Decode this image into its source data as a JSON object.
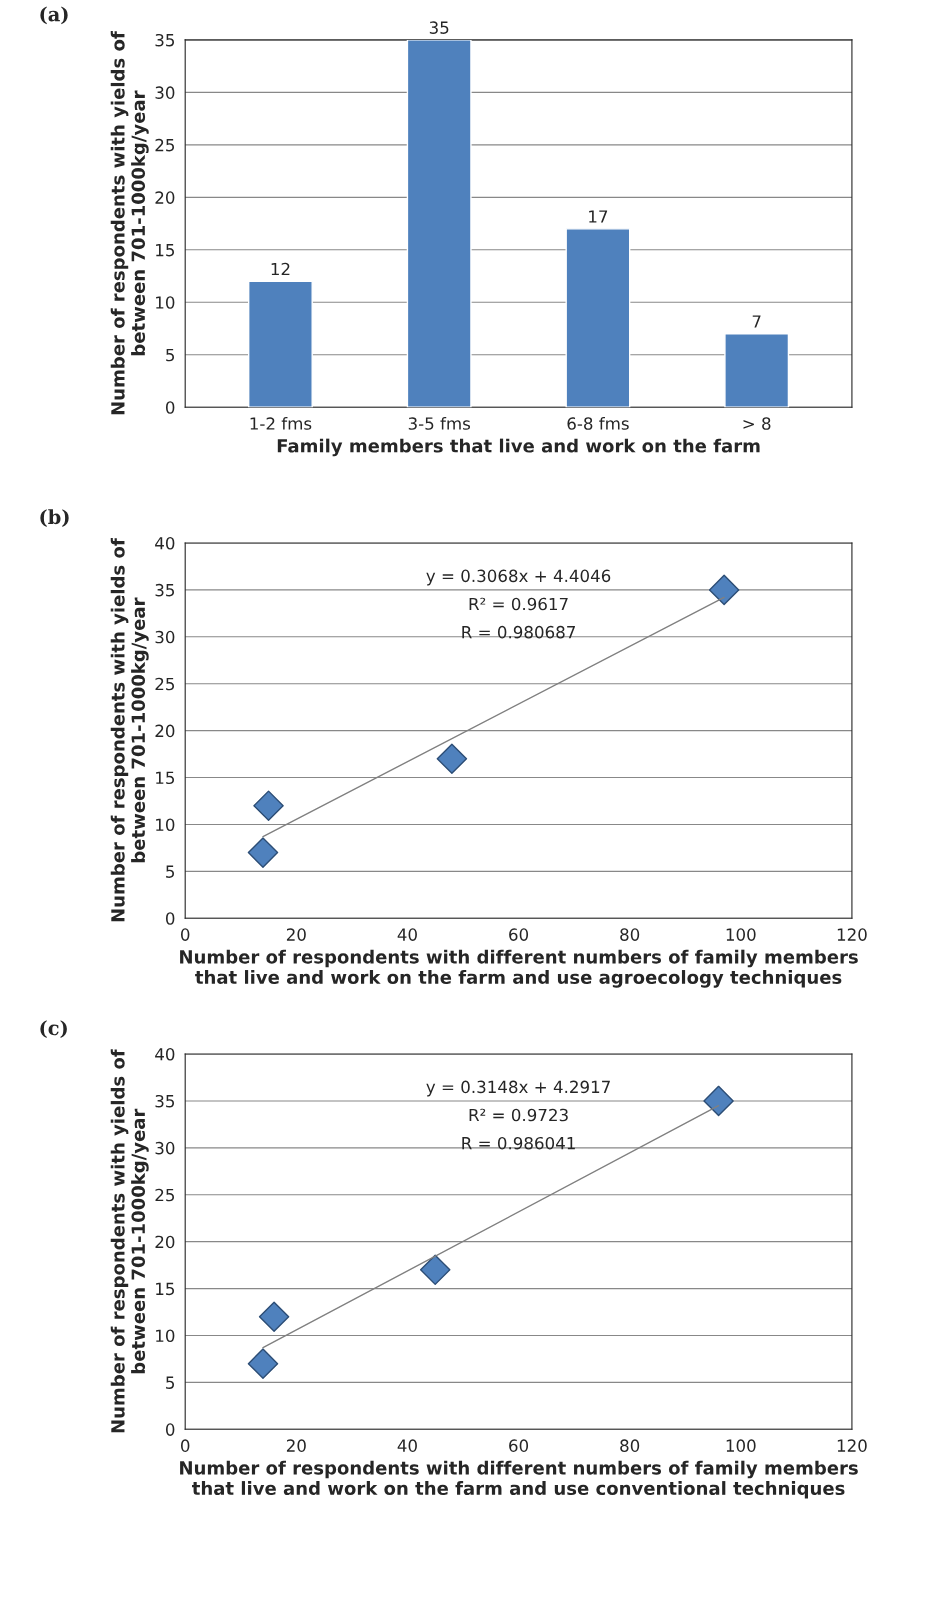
{
  "chart_data": [
    {
      "type": "bar",
      "title": "(a)",
      "xlabel": "Family members that live and work on the farm",
      "ylabel": "Number of respondents with yields of\nbetween 701-1000kg/year",
      "categories": [
        "1-2 fms",
        "3-5 fms",
        "6-8 fms",
        "> 8"
      ],
      "values": [
        12,
        35,
        17,
        7
      ],
      "color": "#4f81bd",
      "data_labels": true,
      "ylim": [
        0,
        35
      ],
      "yticks": [
        0,
        5,
        10,
        15,
        20,
        25,
        30,
        35
      ],
      "grid": "y"
    },
    {
      "type": "scatter",
      "title": "(b)",
      "xlabel": "Number of respondents with different numbers of family members\nthat live and work on the farm and use agroecology techniques",
      "ylabel": "Number of respondents with yields of\nbetween 701-1000kg/year",
      "annotations": [
        "y = 0.3068x + 4.4046",
        "R² = 0.9617",
        "R = 0.980687"
      ],
      "grid": "y",
      "xlim": [
        0,
        120
      ],
      "xticks": [
        0,
        20,
        40,
        60,
        80,
        100,
        120
      ],
      "ylim": [
        0,
        40
      ],
      "yticks": [
        0,
        5,
        10,
        15,
        20,
        25,
        30,
        35,
        40
      ],
      "series": [
        {
          "type": "scatter",
          "marker": "diamond",
          "color": "#4f81bd",
          "x": [
            15,
            14,
            48,
            97
          ],
          "values": [
            12,
            7,
            17,
            35
          ]
        },
        {
          "type": "line",
          "marker": "none",
          "color": "#808080",
          "x": [
            14,
            97
          ],
          "values": [
            8.7,
            34.2
          ]
        }
      ]
    },
    {
      "type": "scatter",
      "title": "(c)",
      "xlabel": "Number of respondents with different numbers of family members\nthat live and work on the farm and use conventional techniques",
      "ylabel": "Number of respondents with yields of\nbetween 701-1000kg/year",
      "annotations": [
        "y = 0.3148x + 4.2917",
        "R² = 0.9723",
        "R = 0.986041"
      ],
      "grid": "y",
      "xlim": [
        0,
        120
      ],
      "xticks": [
        0,
        20,
        40,
        60,
        80,
        100,
        120
      ],
      "ylim": [
        0,
        40
      ],
      "yticks": [
        0,
        5,
        10,
        15,
        20,
        25,
        30,
        35,
        40
      ],
      "series": [
        {
          "type": "scatter",
          "marker": "diamond",
          "color": "#4f81bd",
          "x": [
            16,
            14,
            45,
            96
          ],
          "values": [
            12,
            7,
            17,
            35
          ]
        },
        {
          "type": "line",
          "marker": "none",
          "color": "#808080",
          "x": [
            14,
            96
          ],
          "values": [
            8.7,
            34.5
          ]
        }
      ]
    }
  ]
}
